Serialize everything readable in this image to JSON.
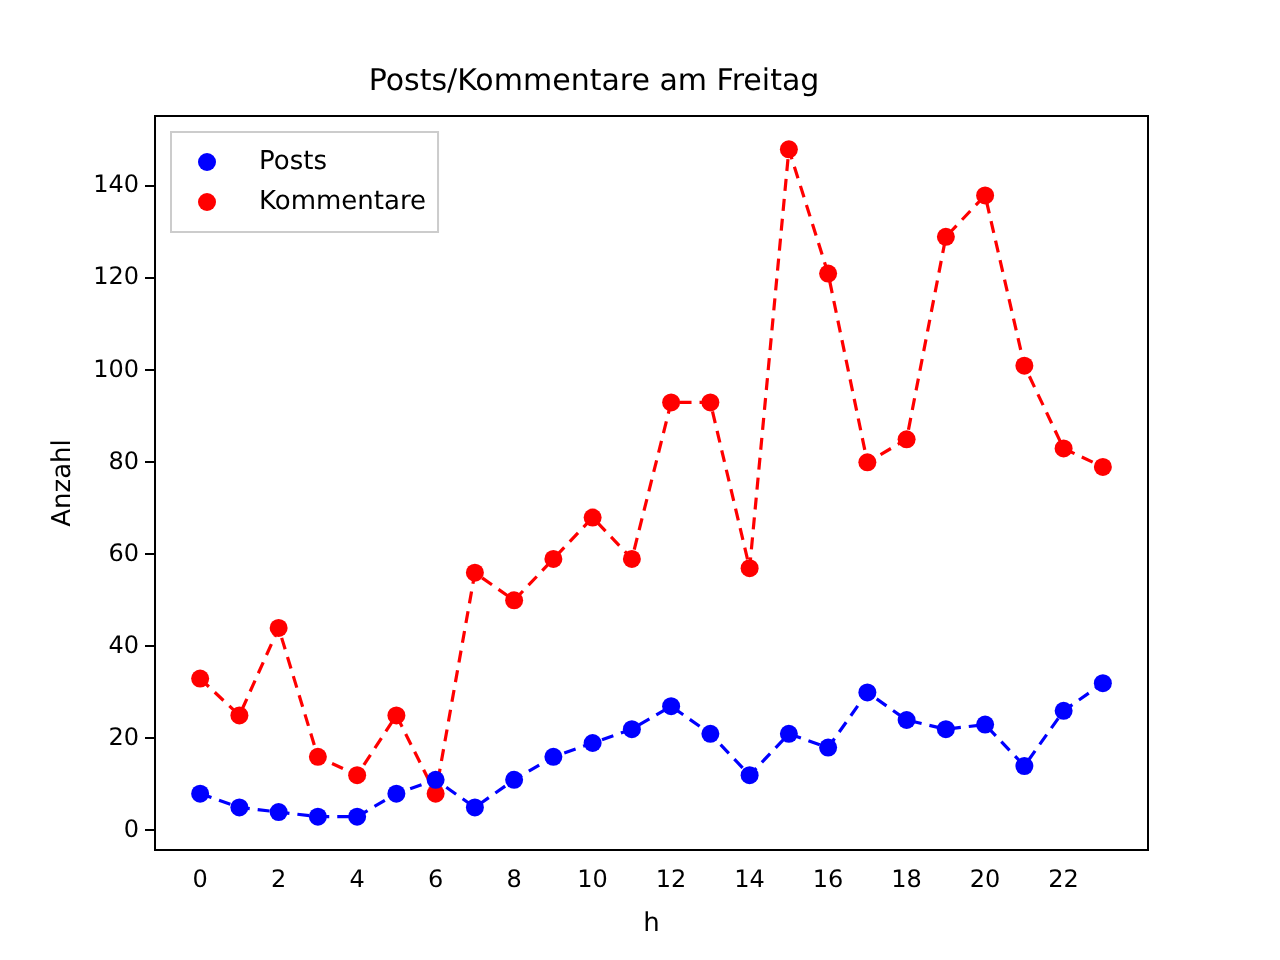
{
  "chart_data": {
    "type": "line",
    "title": "Posts/Kommentare am Freitag",
    "xlabel": "h",
    "ylabel": "Anzahl",
    "x": [
      0,
      1,
      2,
      3,
      4,
      5,
      6,
      7,
      8,
      9,
      10,
      11,
      12,
      13,
      14,
      15,
      16,
      17,
      18,
      19,
      20,
      21,
      22,
      23
    ],
    "series": [
      {
        "name": "Posts",
        "color": "#0000ff",
        "values": [
          8,
          5,
          4,
          3,
          3,
          8,
          11,
          5,
          11,
          16,
          19,
          22,
          27,
          21,
          12,
          21,
          18,
          30,
          24,
          22,
          23,
          14,
          26,
          32
        ]
      },
      {
        "name": "Kommentare",
        "color": "#ff0000",
        "values": [
          33,
          25,
          44,
          16,
          12,
          25,
          8,
          56,
          50,
          59,
          68,
          59,
          93,
          93,
          57,
          148,
          121,
          80,
          85,
          129,
          138,
          101,
          83,
          79
        ]
      }
    ],
    "xlim": [
      -1.15,
      24.15
    ],
    "xticks": [
      0,
      2,
      4,
      6,
      8,
      10,
      12,
      14,
      16,
      18,
      20,
      22
    ],
    "ylim": [
      -4.25,
      155.25
    ],
    "yticks": [
      0,
      20,
      40,
      60,
      80,
      100,
      120,
      140
    ],
    "grid": false,
    "legend": "top left",
    "marker": "circle",
    "line_style": "dashed"
  }
}
